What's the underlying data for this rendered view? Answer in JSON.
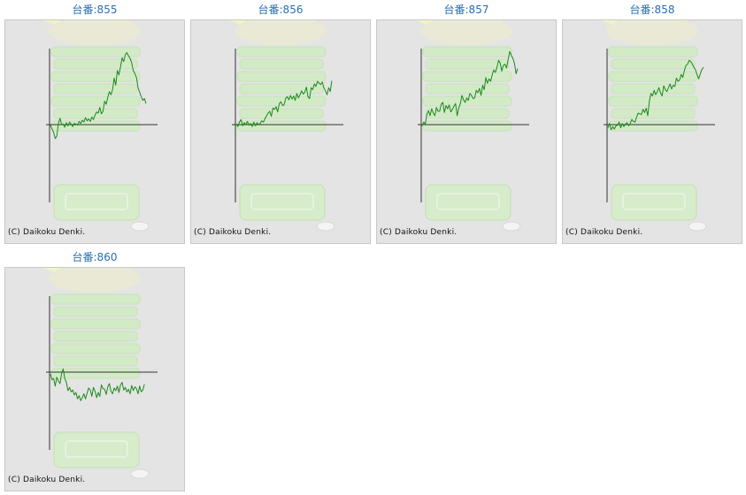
{
  "cards": [
    {
      "title": "台番:855",
      "copyright": "(C) Daikoku Denki.",
      "series": [
        -1,
        -7,
        -12,
        -22,
        -18,
        2,
        10,
        0,
        1,
        -4,
        3,
        -2,
        4,
        1,
        -3,
        2,
        1,
        -1,
        5,
        2,
        7,
        4,
        11,
        6,
        9,
        5,
        12,
        8,
        15,
        20,
        18,
        27,
        17,
        21,
        37,
        32,
        43,
        52,
        47,
        55,
        73,
        62,
        85,
        78,
        91,
        105,
        99,
        110,
        113,
        108,
        104,
        97,
        85,
        80,
        74,
        58,
        51,
        44,
        38,
        41,
        33
      ]
    },
    {
      "title": "台番:856",
      "copyright": "(C) Daikoku Denki.",
      "series": [
        1,
        -3,
        4,
        8,
        -2,
        3,
        0,
        5,
        -1,
        2,
        -3,
        4,
        -2,
        3,
        0,
        2,
        6,
        4,
        9,
        14,
        18,
        21,
        13,
        26,
        24,
        28,
        20,
        33,
        36,
        30,
        31,
        41,
        44,
        39,
        46,
        40,
        45,
        38,
        49,
        42,
        47,
        53,
        48,
        51,
        59,
        44,
        41,
        58,
        55,
        64,
        60,
        68,
        65,
        63,
        67,
        58,
        53,
        47,
        58,
        52,
        69
      ]
    },
    {
      "title": "台番:857",
      "copyright": "(C) Daikoku Denki.",
      "series": [
        -2,
        4,
        1,
        16,
        22,
        14,
        25,
        18,
        14,
        27,
        21,
        21,
        32,
        35,
        19,
        30,
        25,
        31,
        20,
        24,
        29,
        33,
        14,
        26,
        33,
        46,
        39,
        35,
        42,
        38,
        49,
        46,
        41,
        42,
        54,
        50,
        57,
        46,
        62,
        55,
        74,
        65,
        72,
        68,
        78,
        86,
        82,
        90,
        101,
        97,
        84,
        93,
        95,
        89,
        102,
        115,
        109,
        104,
        96,
        80,
        88
      ]
    },
    {
      "title": "台番:858",
      "copyright": "(C) Daikoku Denki.",
      "series": [
        -5,
        2,
        -8,
        -3,
        -7,
        -2,
        -1,
        4,
        -5,
        2,
        -3,
        1,
        3,
        -2,
        2,
        8,
        5,
        4,
        12,
        18,
        17,
        16,
        24,
        19,
        26,
        14,
        37,
        49,
        45,
        54,
        47,
        52,
        58,
        50,
        45,
        61,
        55,
        52,
        58,
        64,
        56,
        62,
        60,
        73,
        68,
        70,
        79,
        74,
        85,
        93,
        95,
        101,
        99,
        95,
        90,
        86,
        78,
        72,
        80,
        87,
        90
      ]
    },
    {
      "title": "台番:860",
      "copyright": "(C) Daikoku Denki.",
      "series": [
        -3,
        -12,
        -10,
        -22,
        -8,
        -14,
        -18,
        -2,
        5,
        -10,
        -16,
        -29,
        -24,
        -31,
        -28,
        -36,
        -32,
        -42,
        -37,
        -45,
        -40,
        -34,
        -42,
        -33,
        -25,
        -28,
        -38,
        -24,
        -30,
        -40,
        -32,
        -38,
        -20,
        -26,
        -27,
        -35,
        -23,
        -18,
        -30,
        -34,
        -25,
        -29,
        -22,
        -32,
        -20,
        -16,
        -28,
        -24,
        -31,
        -27,
        -34,
        -21,
        -29,
        -23,
        -26,
        -34,
        -22,
        -31,
        -28,
        -19
      ]
    }
  ]
}
